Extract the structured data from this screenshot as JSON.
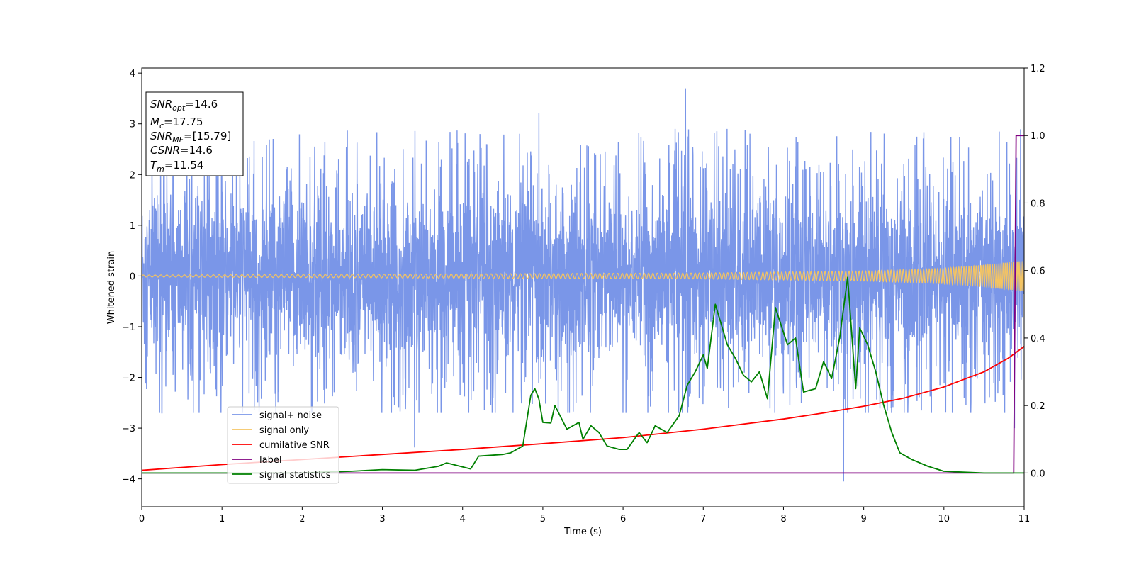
{
  "chart_data": {
    "type": "line",
    "xlabel": "Time (s)",
    "ylabel": "Whitened strain",
    "xlim": [
      0,
      11
    ],
    "ylim": [
      -4.55,
      4.1
    ],
    "y2lim": [
      -0.1,
      1.2
    ],
    "xticks": [
      "0",
      "1",
      "2",
      "3",
      "4",
      "5",
      "6",
      "7",
      "8",
      "9",
      "10",
      "11"
    ],
    "yticks": [
      "−4",
      "−3",
      "−2",
      "−1",
      "0",
      "1",
      "2",
      "3",
      "4"
    ],
    "y2ticks": [
      "0.0",
      "0.2",
      "0.4",
      "0.6",
      "0.8",
      "1.0",
      "1.2"
    ],
    "grid": false,
    "legend_position": "lower-left",
    "info_box": [
      {
        "name": "SNR",
        "sub": "opt",
        "value": "=14.6"
      },
      {
        "name": "M",
        "sub": "c",
        "value": "=17.75"
      },
      {
        "name": "SNR",
        "sub": "MF",
        "value": "=[15.79]"
      },
      {
        "name": "CSNR",
        "sub": "",
        "value": "=14.6"
      },
      {
        "name": "T",
        "sub": "m",
        "value": "=11.54"
      }
    ],
    "series": [
      {
        "name": "signal+ noise",
        "color": "#7a96e8",
        "axis": "left",
        "kind": "noise",
        "noise_band_base": [
          -1.7,
          1.7
        ],
        "approx_extremes": [
          {
            "x": 6.78,
            "y": 3.7
          },
          {
            "x": 8.75,
            "y": -4.05
          },
          {
            "x": 3.4,
            "y": -3.38
          },
          {
            "x": 10.88,
            "y": -3.0
          },
          {
            "x": 4.95,
            "y": 3.22
          }
        ]
      },
      {
        "name": "signal only",
        "color": "#f4c462",
        "axis": "left",
        "kind": "chirp",
        "amplitude": [
          [
            0,
            0.02
          ],
          [
            7,
            0.06
          ],
          [
            9,
            0.1
          ],
          [
            10,
            0.15
          ],
          [
            10.5,
            0.22
          ],
          [
            11,
            0.3
          ]
        ]
      },
      {
        "name": "cumilative SNR",
        "color": "#ff0000",
        "axis": "right",
        "points": [
          [
            0,
            0.008
          ],
          [
            1,
            0.025
          ],
          [
            2,
            0.04
          ],
          [
            3,
            0.055
          ],
          [
            4,
            0.07
          ],
          [
            5,
            0.087
          ],
          [
            6,
            0.105
          ],
          [
            7,
            0.13
          ],
          [
            8,
            0.16
          ],
          [
            8.5,
            0.178
          ],
          [
            9,
            0.198
          ],
          [
            9.5,
            0.222
          ],
          [
            10,
            0.255
          ],
          [
            10.5,
            0.3
          ],
          [
            10.8,
            0.34
          ],
          [
            11,
            0.375
          ]
        ]
      },
      {
        "name": "label",
        "color": "#800080",
        "axis": "right",
        "points": [
          [
            0,
            0.0
          ],
          [
            10.87,
            0.0
          ],
          [
            10.9,
            1.0
          ],
          [
            11,
            1.0
          ]
        ]
      },
      {
        "name": "signal statistics",
        "color": "#008000",
        "axis": "right",
        "points": [
          [
            0,
            0.0
          ],
          [
            1,
            0.0
          ],
          [
            2,
            0.0
          ],
          [
            2.3,
            0.003
          ],
          [
            2.6,
            0.005
          ],
          [
            3,
            0.01
          ],
          [
            3.4,
            0.008
          ],
          [
            3.7,
            0.02
          ],
          [
            3.8,
            0.03
          ],
          [
            4.1,
            0.012
          ],
          [
            4.2,
            0.05
          ],
          [
            4.5,
            0.055
          ],
          [
            4.6,
            0.06
          ],
          [
            4.75,
            0.08
          ],
          [
            4.85,
            0.23
          ],
          [
            4.9,
            0.25
          ],
          [
            4.95,
            0.22
          ],
          [
            5.0,
            0.15
          ],
          [
            5.1,
            0.148
          ],
          [
            5.15,
            0.2
          ],
          [
            5.3,
            0.13
          ],
          [
            5.45,
            0.15
          ],
          [
            5.5,
            0.1
          ],
          [
            5.6,
            0.14
          ],
          [
            5.7,
            0.12
          ],
          [
            5.8,
            0.08
          ],
          [
            5.95,
            0.07
          ],
          [
            6.05,
            0.07
          ],
          [
            6.2,
            0.12
          ],
          [
            6.3,
            0.09
          ],
          [
            6.4,
            0.14
          ],
          [
            6.55,
            0.12
          ],
          [
            6.7,
            0.17
          ],
          [
            6.8,
            0.26
          ],
          [
            6.9,
            0.3
          ],
          [
            7.0,
            0.35
          ],
          [
            7.05,
            0.31
          ],
          [
            7.15,
            0.5
          ],
          [
            7.3,
            0.38
          ],
          [
            7.4,
            0.34
          ],
          [
            7.5,
            0.29
          ],
          [
            7.6,
            0.27
          ],
          [
            7.7,
            0.3
          ],
          [
            7.8,
            0.22
          ],
          [
            7.9,
            0.49
          ],
          [
            8.05,
            0.38
          ],
          [
            8.15,
            0.4
          ],
          [
            8.25,
            0.24
          ],
          [
            8.4,
            0.25
          ],
          [
            8.5,
            0.33
          ],
          [
            8.6,
            0.28
          ],
          [
            8.7,
            0.4
          ],
          [
            8.8,
            0.58
          ],
          [
            8.9,
            0.25
          ],
          [
            8.95,
            0.43
          ],
          [
            9.05,
            0.38
          ],
          [
            9.15,
            0.3
          ],
          [
            9.25,
            0.2
          ],
          [
            9.35,
            0.12
          ],
          [
            9.45,
            0.06
          ],
          [
            9.6,
            0.04
          ],
          [
            9.8,
            0.02
          ],
          [
            10.0,
            0.005
          ],
          [
            10.5,
            0.0
          ],
          [
            11,
            0.0
          ]
        ]
      }
    ]
  }
}
